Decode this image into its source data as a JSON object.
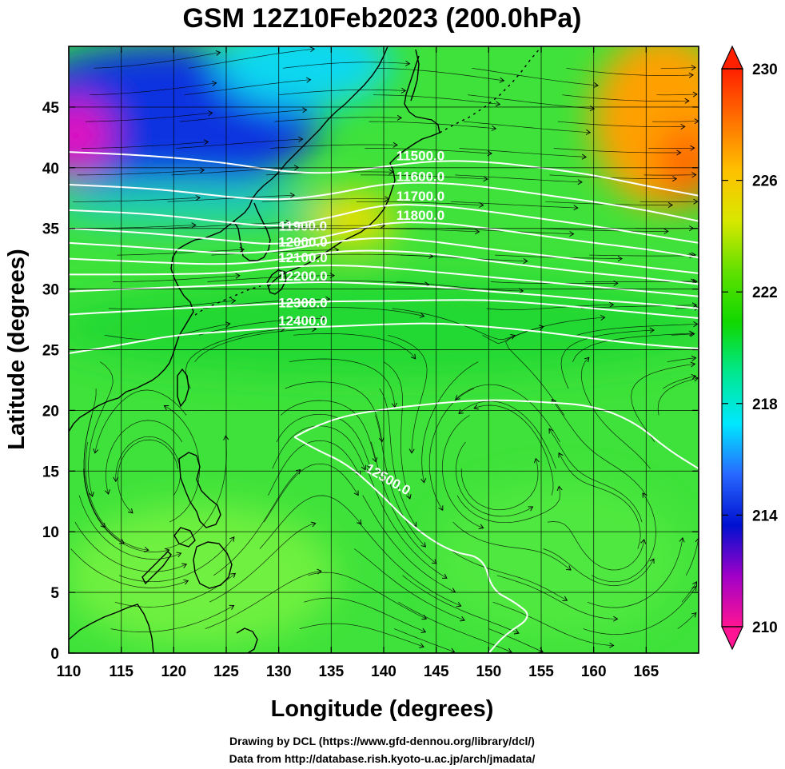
{
  "title": "GSM 12Z10Feb2023 (200.0hPa)",
  "xlabel": "Longitude (degrees)",
  "ylabel": "Latitude  (degrees)",
  "credits": [
    "Drawing by DCL (https://www.gfd-dennou.org/library/dcl/)",
    "Data from http://database.rish.kyoto-u.ac.jp/arch/jmadata/"
  ],
  "colorbar": {
    "ticks": [
      "210",
      "214",
      "218",
      "222",
      "226",
      "230"
    ],
    "stops": [
      "#ff1493",
      "#a000c8",
      "#0010d0",
      "#2868ff",
      "#00e8ff",
      "#00e890",
      "#10d800",
      "#60e000",
      "#d8e800",
      "#ffc000",
      "#ff7000",
      "#ff2000"
    ]
  },
  "colors": {
    "contour": "#ffffff",
    "streamline": "#000000",
    "coast": "#000000"
  },
  "chart_data": {
    "type": "heatmap",
    "variable_range": [
      210,
      230
    ],
    "xlim": [
      110,
      170
    ],
    "ylim": [
      0,
      50
    ],
    "xticks": [
      110,
      115,
      120,
      125,
      130,
      135,
      140,
      145,
      150,
      155,
      160,
      165
    ],
    "yticks": [
      0,
      5,
      10,
      15,
      20,
      25,
      30,
      35,
      40,
      45
    ],
    "xtick_labels": [
      "110",
      "115",
      "120",
      "125",
      "130",
      "135",
      "140",
      "145",
      "150",
      "155",
      "160",
      "165"
    ],
    "ytick_labels": [
      "0",
      "5",
      "10",
      "15",
      "20",
      "25",
      "30",
      "35",
      "40",
      "45"
    ],
    "grid": true,
    "contours": [
      {
        "label": "11500.0",
        "points": [
          [
            110,
            41.3
          ],
          [
            118,
            41.0
          ],
          [
            125,
            40.4
          ],
          [
            130,
            39.7
          ],
          [
            135,
            39.5
          ],
          [
            140,
            40.1
          ],
          [
            145,
            40.6
          ],
          [
            150,
            40.5
          ],
          [
            155,
            40.0
          ],
          [
            160,
            39.4
          ],
          [
            165,
            38.5
          ],
          [
            170,
            37.7
          ]
        ],
        "label_at": [
          143.5,
          40.6
        ]
      },
      {
        "label": "11600.0",
        "points": [
          [
            110,
            38.6
          ],
          [
            118,
            38.3
          ],
          [
            125,
            37.6
          ],
          [
            130,
            37.3
          ],
          [
            135,
            37.8
          ],
          [
            140,
            38.7
          ],
          [
            145,
            38.8
          ],
          [
            150,
            38.4
          ],
          [
            155,
            37.8
          ],
          [
            160,
            37.2
          ],
          [
            165,
            36.5
          ],
          [
            170,
            35.6
          ]
        ],
        "label_at": [
          143.5,
          38.9
        ]
      },
      {
        "label": "11700.0",
        "points": [
          [
            110,
            36.5
          ],
          [
            118,
            36.2
          ],
          [
            125,
            35.5
          ],
          [
            130,
            35.1
          ],
          [
            135,
            35.9
          ],
          [
            140,
            37.0
          ],
          [
            145,
            36.9
          ],
          [
            150,
            36.4
          ],
          [
            155,
            35.8
          ],
          [
            160,
            35.2
          ],
          [
            165,
            34.5
          ],
          [
            170,
            33.8
          ]
        ],
        "label_at": [
          143.5,
          37.3
        ]
      },
      {
        "label": "11800.0",
        "points": [
          [
            110,
            35.0
          ],
          [
            118,
            34.6
          ],
          [
            125,
            34.0
          ],
          [
            130,
            33.6
          ],
          [
            135,
            34.4
          ],
          [
            140,
            35.5
          ],
          [
            145,
            35.5
          ],
          [
            150,
            35.0
          ],
          [
            155,
            34.4
          ],
          [
            160,
            33.8
          ],
          [
            165,
            33.3
          ],
          [
            170,
            32.6
          ]
        ],
        "label_at": [
          143.5,
          35.7
        ]
      },
      {
        "label": "11900.0",
        "points": [
          [
            110,
            33.8
          ],
          [
            118,
            33.4
          ],
          [
            125,
            32.9
          ],
          [
            130,
            33.1
          ],
          [
            135,
            33.9
          ],
          [
            140,
            34.3
          ],
          [
            145,
            33.9
          ],
          [
            150,
            33.3
          ],
          [
            155,
            32.8
          ],
          [
            160,
            32.3
          ],
          [
            165,
            31.8
          ],
          [
            170,
            31.3
          ]
        ],
        "label_at": [
          132.3,
          34.8
        ]
      },
      {
        "label": "12000.0",
        "points": [
          [
            110,
            32.5
          ],
          [
            118,
            32.2
          ],
          [
            125,
            32.0
          ],
          [
            130,
            32.4
          ],
          [
            135,
            33.1
          ],
          [
            140,
            33.2
          ],
          [
            145,
            32.9
          ],
          [
            150,
            32.3
          ],
          [
            155,
            31.8
          ],
          [
            160,
            31.3
          ],
          [
            165,
            30.9
          ],
          [
            170,
            30.4
          ]
        ],
        "label_at": [
          132.3,
          33.5
        ]
      },
      {
        "label": "12100.0",
        "points": [
          [
            110,
            31.2
          ],
          [
            118,
            31.2
          ],
          [
            125,
            31.3
          ],
          [
            130,
            31.8
          ],
          [
            135,
            32.0
          ],
          [
            140,
            31.8
          ],
          [
            145,
            31.4
          ],
          [
            150,
            31.0
          ],
          [
            155,
            30.6
          ],
          [
            160,
            30.2
          ],
          [
            165,
            29.8
          ],
          [
            170,
            29.4
          ]
        ],
        "label_at": [
          132.3,
          32.2
        ]
      },
      {
        "label": "12200.0",
        "points": [
          [
            110,
            29.8
          ],
          [
            118,
            30.1
          ],
          [
            125,
            30.3
          ],
          [
            130,
            30.5
          ],
          [
            135,
            30.6
          ],
          [
            140,
            30.4
          ],
          [
            145,
            30.2
          ],
          [
            150,
            29.8
          ],
          [
            155,
            29.5
          ],
          [
            160,
            29.1
          ],
          [
            165,
            28.8
          ],
          [
            170,
            28.4
          ]
        ],
        "label_at": [
          132.3,
          30.7
        ]
      },
      {
        "label": "12300.0",
        "points": [
          [
            110,
            27.9
          ],
          [
            118,
            28.3
          ],
          [
            125,
            28.6
          ],
          [
            130,
            28.8
          ],
          [
            135,
            29.0
          ],
          [
            140,
            29.0
          ],
          [
            145,
            29.1
          ],
          [
            150,
            29.1
          ],
          [
            155,
            28.8
          ],
          [
            160,
            28.4
          ],
          [
            165,
            28.0
          ],
          [
            170,
            27.6
          ]
        ],
        "label_at": [
          132.3,
          28.5
        ]
      },
      {
        "label": "12400.0",
        "points": [
          [
            110,
            24.7
          ],
          [
            115,
            25.4
          ],
          [
            120,
            26.2
          ],
          [
            125,
            26.5
          ],
          [
            130,
            26.8
          ],
          [
            135,
            26.9
          ],
          [
            140,
            27.1
          ],
          [
            145,
            27.2
          ],
          [
            150,
            26.9
          ],
          [
            155,
            26.5
          ],
          [
            160,
            25.9
          ],
          [
            165,
            25.4
          ],
          [
            170,
            25.1
          ]
        ],
        "label_at": [
          132.3,
          27.0
        ]
      },
      {
        "label": "12500.0",
        "points": [
          [
            131.5,
            17.8
          ],
          [
            133,
            18.5
          ],
          [
            136,
            19.5
          ],
          [
            140,
            20.1
          ],
          [
            145,
            20.6
          ],
          [
            150,
            20.9
          ],
          [
            155,
            20.7
          ],
          [
            160,
            20.4
          ],
          [
            164,
            19.0
          ],
          [
            167,
            16.8
          ],
          [
            170,
            15.2
          ]
        ],
        "label_at": [
          140.2,
          14.0
        ]
      },
      {
        "label": "",
        "points": [
          [
            131.5,
            17.8
          ],
          [
            133.5,
            16.8
          ],
          [
            136.5,
            15.6
          ],
          [
            139.5,
            13.3
          ],
          [
            143,
            10.2
          ],
          [
            146.5,
            8.3
          ],
          [
            149.5,
            7.9
          ],
          [
            150.3,
            5.2
          ],
          [
            152.5,
            4.2
          ],
          [
            154.2,
            3.0
          ],
          [
            151.5,
            1.5
          ],
          [
            150,
            0
          ]
        ],
        "label_at": null
      }
    ]
  }
}
